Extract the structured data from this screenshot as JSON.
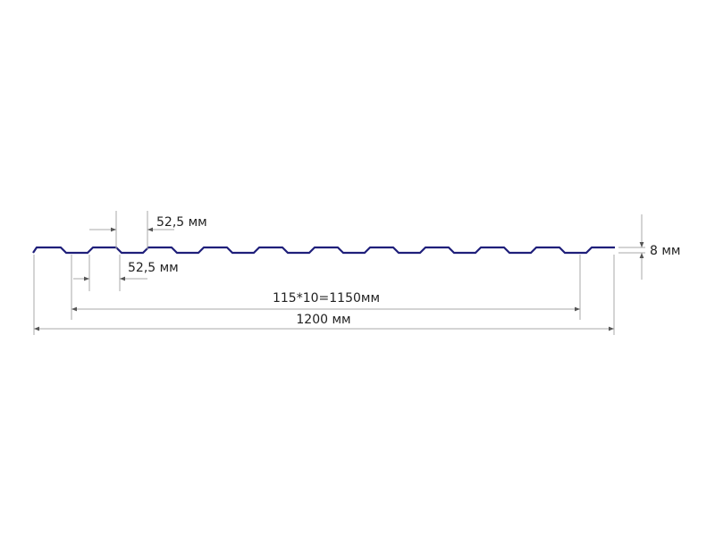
{
  "diagram": {
    "profile_color": "#1f1f7a",
    "dimension_color": "#aaaaaa",
    "labels": {
      "crest_width": "52,5 мм",
      "trough_width": "52,5 мм",
      "pitch_total": "115*10=1150мм",
      "overall_width": "1200 мм",
      "height": "8 мм"
    }
  }
}
